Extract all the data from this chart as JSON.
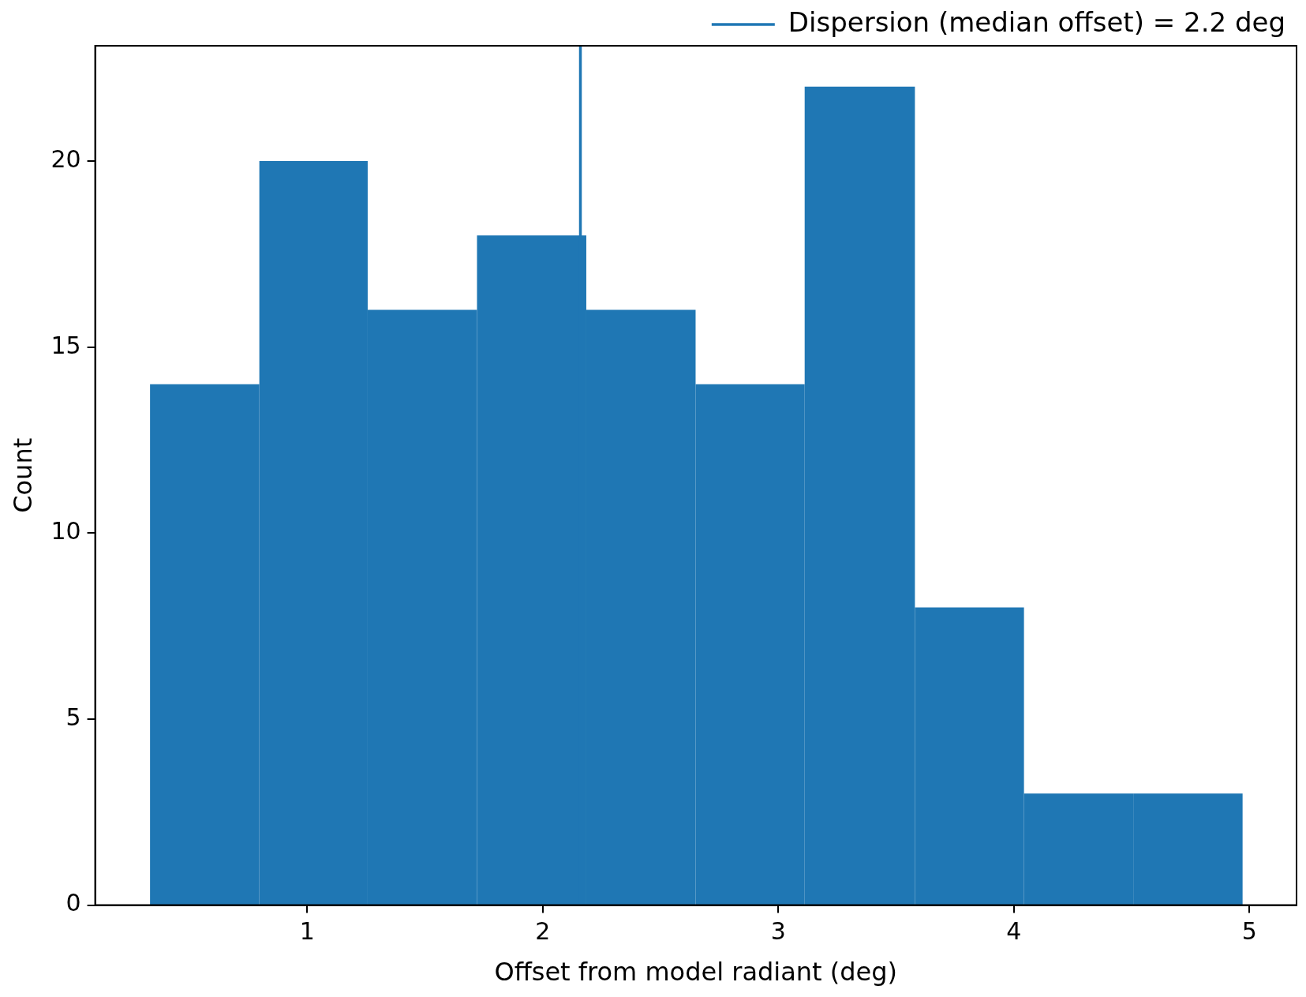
{
  "chart_data": {
    "type": "histogram",
    "xlabel": "Offset from model radiant (deg)",
    "ylabel": "Count",
    "bins": [
      0.333,
      0.797,
      1.257,
      1.721,
      2.185,
      2.649,
      3.112,
      3.58,
      4.043,
      4.507,
      4.971
    ],
    "values": [
      14,
      20,
      16,
      18,
      16,
      14,
      22,
      8,
      3,
      3
    ],
    "color": "#1f77b4",
    "xlim": [
      0.1,
      5.2
    ],
    "xticks": [
      1,
      2,
      3,
      4,
      5
    ],
    "ylim": [
      0,
      23.1
    ],
    "yticks": [
      0,
      5,
      10,
      15,
      20
    ],
    "ref_lines": [
      {
        "axis": "x",
        "value": 2.16,
        "label": "Dispersion (median offset) = 2.2 deg",
        "color": "#1f77b4"
      }
    ],
    "legend": "top right",
    "grid": false
  }
}
